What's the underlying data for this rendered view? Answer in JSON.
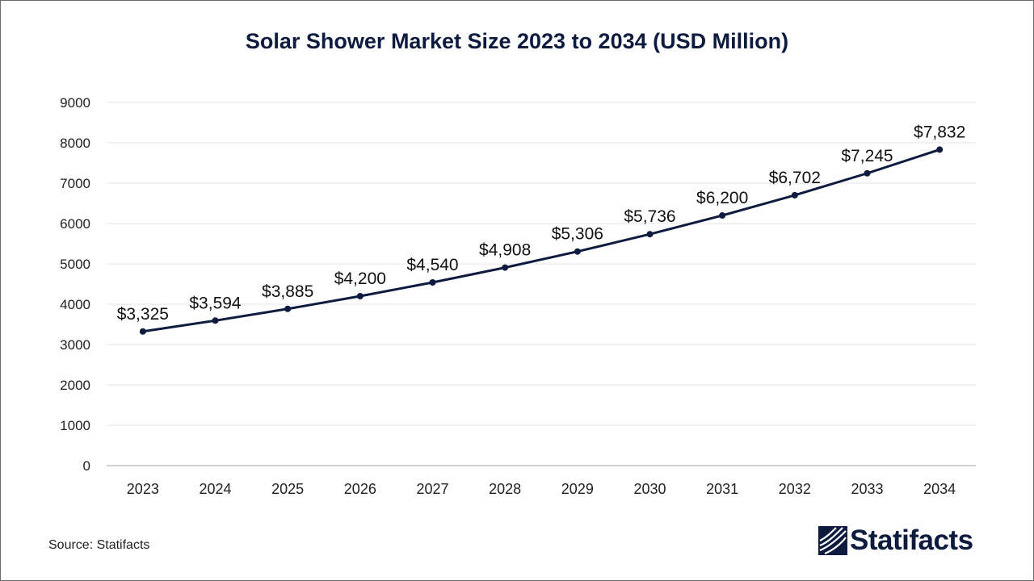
{
  "chart_data": {
    "type": "line",
    "title": "Solar Shower Market Size 2023 to 2034 (USD Million)",
    "categories": [
      "2023",
      "2024",
      "2025",
      "2026",
      "2027",
      "2028",
      "2029",
      "2030",
      "2031",
      "2032",
      "2033",
      "2034"
    ],
    "series": [
      {
        "name": "Market Size (USD Million)",
        "values": [
          3325,
          3594,
          3885,
          4200,
          4540,
          4908,
          5306,
          5736,
          6200,
          6702,
          7245,
          7832
        ],
        "labels": [
          "$3,325",
          "$3,594",
          "$3,885",
          "$4,200",
          "$4,540",
          "$4,908",
          "$5,306",
          "$5,736",
          "$6,200",
          "$6,702",
          "$7,245",
          "$7,832"
        ]
      }
    ],
    "yticks": [
      "0",
      "1000",
      "2000",
      "3000",
      "4000",
      "5000",
      "6000",
      "7000",
      "8000",
      "9000"
    ],
    "ylim": [
      0,
      9000
    ],
    "xlabel": "",
    "ylabel": "",
    "grid": true,
    "line_color": "#0d1b3e",
    "grid_color": "#e6e6e6"
  },
  "footer": {
    "source": "Source: Statifacts",
    "brand": "Statifacts"
  },
  "colors": {
    "brand": "#0d1b3e"
  }
}
